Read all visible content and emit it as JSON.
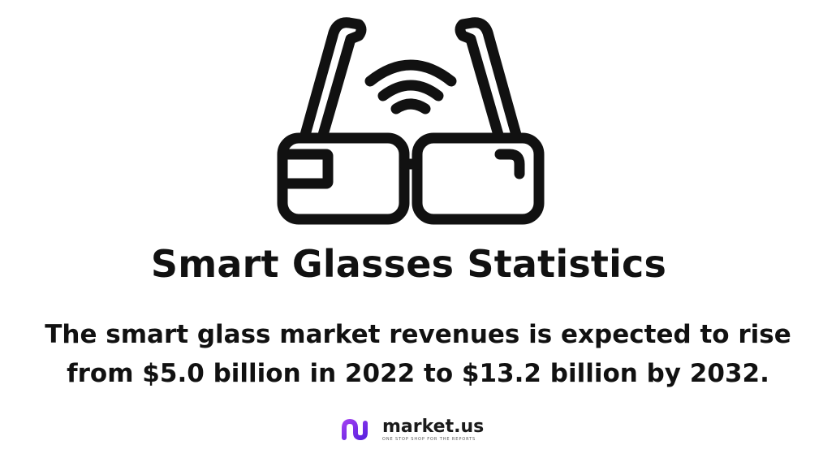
{
  "title": "Smart Glasses Statistics",
  "description": {
    "line1": "The smart glass market revenues is expected to rise",
    "line2": "from $5.0 billion in 2022 to $13.2 billion by 2032."
  },
  "brand": {
    "name": "market.us",
    "tagline": "ONE STOP SHOP FOR THE REPORTS",
    "accent_color": "#7b2ff0",
    "accent_color_2": "#b04ae8"
  },
  "icons": {
    "hero": "smart-glasses-icon",
    "logo": "market-us-logo-icon"
  },
  "colors": {
    "ink": "#111111",
    "background": "#ffffff"
  }
}
